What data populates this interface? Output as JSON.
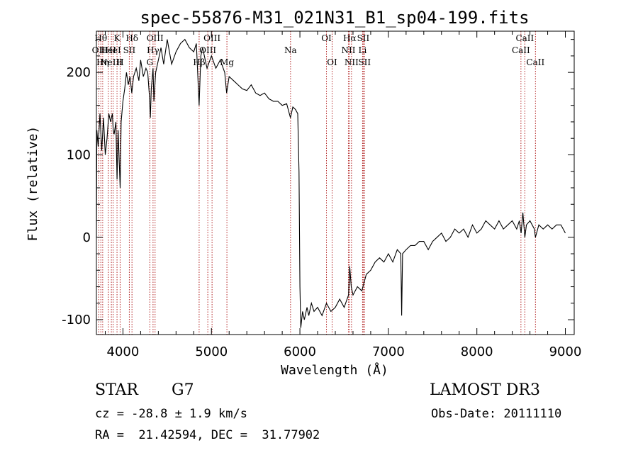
{
  "chart_data": {
    "type": "line",
    "title": "spec-55876-M31_021N31_B1_sp04-199.fits",
    "xlabel": "Wavelength (Å)",
    "ylabel": "Flux (relative)",
    "xlim": [
      3700,
      9100
    ],
    "ylim": [
      -118,
      250
    ],
    "xticks": [
      4000,
      5000,
      6000,
      7000,
      8000,
      9000
    ],
    "yticks": [
      -100,
      0,
      100,
      200
    ],
    "series": [
      {
        "color": "#000000",
        "points": [
          [
            3700,
            0
          ],
          [
            3705,
            130
          ],
          [
            3720,
            110
          ],
          [
            3740,
            150
          ],
          [
            3760,
            105
          ],
          [
            3780,
            145
          ],
          [
            3800,
            100
          ],
          [
            3820,
            120
          ],
          [
            3840,
            150
          ],
          [
            3860,
            140
          ],
          [
            3880,
            150
          ],
          [
            3890,
            130
          ],
          [
            3900,
            125
          ],
          [
            3920,
            140
          ],
          [
            3933,
            70
          ],
          [
            3945,
            130
          ],
          [
            3968,
            60
          ],
          [
            3980,
            140
          ],
          [
            4000,
            165
          ],
          [
            4020,
            180
          ],
          [
            4040,
            200
          ],
          [
            4060,
            185
          ],
          [
            4080,
            195
          ],
          [
            4100,
            175
          ],
          [
            4120,
            195
          ],
          [
            4150,
            205
          ],
          [
            4180,
            190
          ],
          [
            4200,
            215
          ],
          [
            4230,
            195
          ],
          [
            4260,
            205
          ],
          [
            4280,
            200
          ],
          [
            4300,
            170
          ],
          [
            4310,
            145
          ],
          [
            4320,
            180
          ],
          [
            4340,
            205
          ],
          [
            4350,
            165
          ],
          [
            4370,
            200
          ],
          [
            4400,
            215
          ],
          [
            4430,
            230
          ],
          [
            4460,
            210
          ],
          [
            4500,
            240
          ],
          [
            4550,
            210
          ],
          [
            4600,
            225
          ],
          [
            4650,
            235
          ],
          [
            4700,
            240
          ],
          [
            4750,
            230
          ],
          [
            4800,
            225
          ],
          [
            4830,
            235
          ],
          [
            4861,
            160
          ],
          [
            4880,
            220
          ],
          [
            4900,
            230
          ],
          [
            4950,
            205
          ],
          [
            5000,
            220
          ],
          [
            5050,
            205
          ],
          [
            5100,
            215
          ],
          [
            5150,
            200
          ],
          [
            5172,
            175
          ],
          [
            5200,
            195
          ],
          [
            5250,
            190
          ],
          [
            5300,
            185
          ],
          [
            5350,
            180
          ],
          [
            5400,
            178
          ],
          [
            5450,
            185
          ],
          [
            5500,
            175
          ],
          [
            5550,
            172
          ],
          [
            5600,
            175
          ],
          [
            5650,
            168
          ],
          [
            5700,
            165
          ],
          [
            5750,
            165
          ],
          [
            5800,
            160
          ],
          [
            5850,
            162
          ],
          [
            5893,
            145
          ],
          [
            5920,
            158
          ],
          [
            5950,
            155
          ],
          [
            5975,
            150
          ],
          [
            5990,
            80
          ],
          [
            6000,
            -60
          ],
          [
            6010,
            -110
          ],
          [
            6030,
            -90
          ],
          [
            6050,
            -100
          ],
          [
            6080,
            -85
          ],
          [
            6100,
            -95
          ],
          [
            6130,
            -80
          ],
          [
            6160,
            -90
          ],
          [
            6200,
            -85
          ],
          [
            6250,
            -95
          ],
          [
            6300,
            -80
          ],
          [
            6350,
            -90
          ],
          [
            6400,
            -85
          ],
          [
            6450,
            -75
          ],
          [
            6500,
            -85
          ],
          [
            6550,
            -70
          ],
          [
            6563,
            -35
          ],
          [
            6580,
            -60
          ],
          [
            6600,
            -70
          ],
          [
            6650,
            -60
          ],
          [
            6700,
            -65
          ],
          [
            6750,
            -45
          ],
          [
            6800,
            -40
          ],
          [
            6850,
            -30
          ],
          [
            6900,
            -25
          ],
          [
            6950,
            -30
          ],
          [
            7000,
            -20
          ],
          [
            7050,
            -30
          ],
          [
            7100,
            -15
          ],
          [
            7140,
            -20
          ],
          [
            7150,
            -95
          ],
          [
            7160,
            -20
          ],
          [
            7200,
            -15
          ],
          [
            7250,
            -10
          ],
          [
            7300,
            -10
          ],
          [
            7350,
            -5
          ],
          [
            7400,
            -5
          ],
          [
            7450,
            -15
          ],
          [
            7500,
            -5
          ],
          [
            7550,
            0
          ],
          [
            7600,
            5
          ],
          [
            7650,
            -5
          ],
          [
            7700,
            0
          ],
          [
            7750,
            10
          ],
          [
            7800,
            5
          ],
          [
            7850,
            10
          ],
          [
            7900,
            0
          ],
          [
            7950,
            15
          ],
          [
            8000,
            5
          ],
          [
            8050,
            10
          ],
          [
            8100,
            20
          ],
          [
            8150,
            15
          ],
          [
            8200,
            10
          ],
          [
            8250,
            20
          ],
          [
            8300,
            10
          ],
          [
            8350,
            15
          ],
          [
            8400,
            20
          ],
          [
            8450,
            10
          ],
          [
            8480,
            20
          ],
          [
            8500,
            5
          ],
          [
            8520,
            30
          ],
          [
            8542,
            0
          ],
          [
            8560,
            15
          ],
          [
            8600,
            20
          ],
          [
            8650,
            10
          ],
          [
            8662,
            0
          ],
          [
            8700,
            15
          ],
          [
            8750,
            10
          ],
          [
            8800,
            15
          ],
          [
            8850,
            10
          ],
          [
            8900,
            15
          ],
          [
            8950,
            15
          ],
          [
            9000,
            5
          ]
        ]
      }
    ],
    "lines": [
      {
        "x": 3726,
        "label": "OII",
        "row": 1
      },
      {
        "x": 3750,
        "label": "Hθ",
        "row": 0
      },
      {
        "x": 3771,
        "label": "Hη",
        "row": 2
      },
      {
        "x": 3835,
        "label": "HeI",
        "row": 1
      },
      {
        "x": 3869,
        "label": "NeIII",
        "row": 2
      },
      {
        "x": 3889,
        "label": "HeI",
        "row": 1
      },
      {
        "x": 3933,
        "label": "K",
        "row": 0
      },
      {
        "x": 3968,
        "label": "H",
        "row": 2
      },
      {
        "x": 4072,
        "label": "SII",
        "row": 1
      },
      {
        "x": 4102,
        "label": "Hδ",
        "row": 0
      },
      {
        "x": 4304,
        "label": "G",
        "row": 2
      },
      {
        "x": 4340,
        "label": "Hγ",
        "row": 1
      },
      {
        "x": 4363,
        "label": "OIII",
        "row": 0
      },
      {
        "x": 4861,
        "label": "Hβ",
        "row": 2
      },
      {
        "x": 4959,
        "label": "OIII",
        "row": 1
      },
      {
        "x": 5007,
        "label": "OIII",
        "row": 0
      },
      {
        "x": 5175,
        "label": "Mg",
        "row": 2
      },
      {
        "x": 5894,
        "label": "Na",
        "row": 1
      },
      {
        "x": 6300,
        "label": "OI",
        "row": 0
      },
      {
        "x": 6364,
        "label": "OI",
        "row": 2
      },
      {
        "x": 6548,
        "label": "NII",
        "row": 1
      },
      {
        "x": 6563,
        "label": "Hα",
        "row": 0
      },
      {
        "x": 6583,
        "label": "NII",
        "row": 2
      },
      {
        "x": 6708,
        "label": "Li",
        "row": 1
      },
      {
        "x": 6716,
        "label": "SII",
        "row": 0
      },
      {
        "x": 6731,
        "label": "SII",
        "row": 2
      },
      {
        "x": 8498,
        "label": "CaII",
        "row": 1
      },
      {
        "x": 8542,
        "label": "CaII",
        "row": 0
      },
      {
        "x": 8662,
        "label": "CaII",
        "row": 2
      }
    ]
  },
  "info": {
    "class": "STAR",
    "subclass": "G7",
    "survey": "LAMOST DR3",
    "cz": "cz = -28.8 ± 1.9 km/s",
    "obs_date": "Obs-Date: 20111110",
    "coords": "RA =  21.42594, DEC =  31.77902"
  }
}
